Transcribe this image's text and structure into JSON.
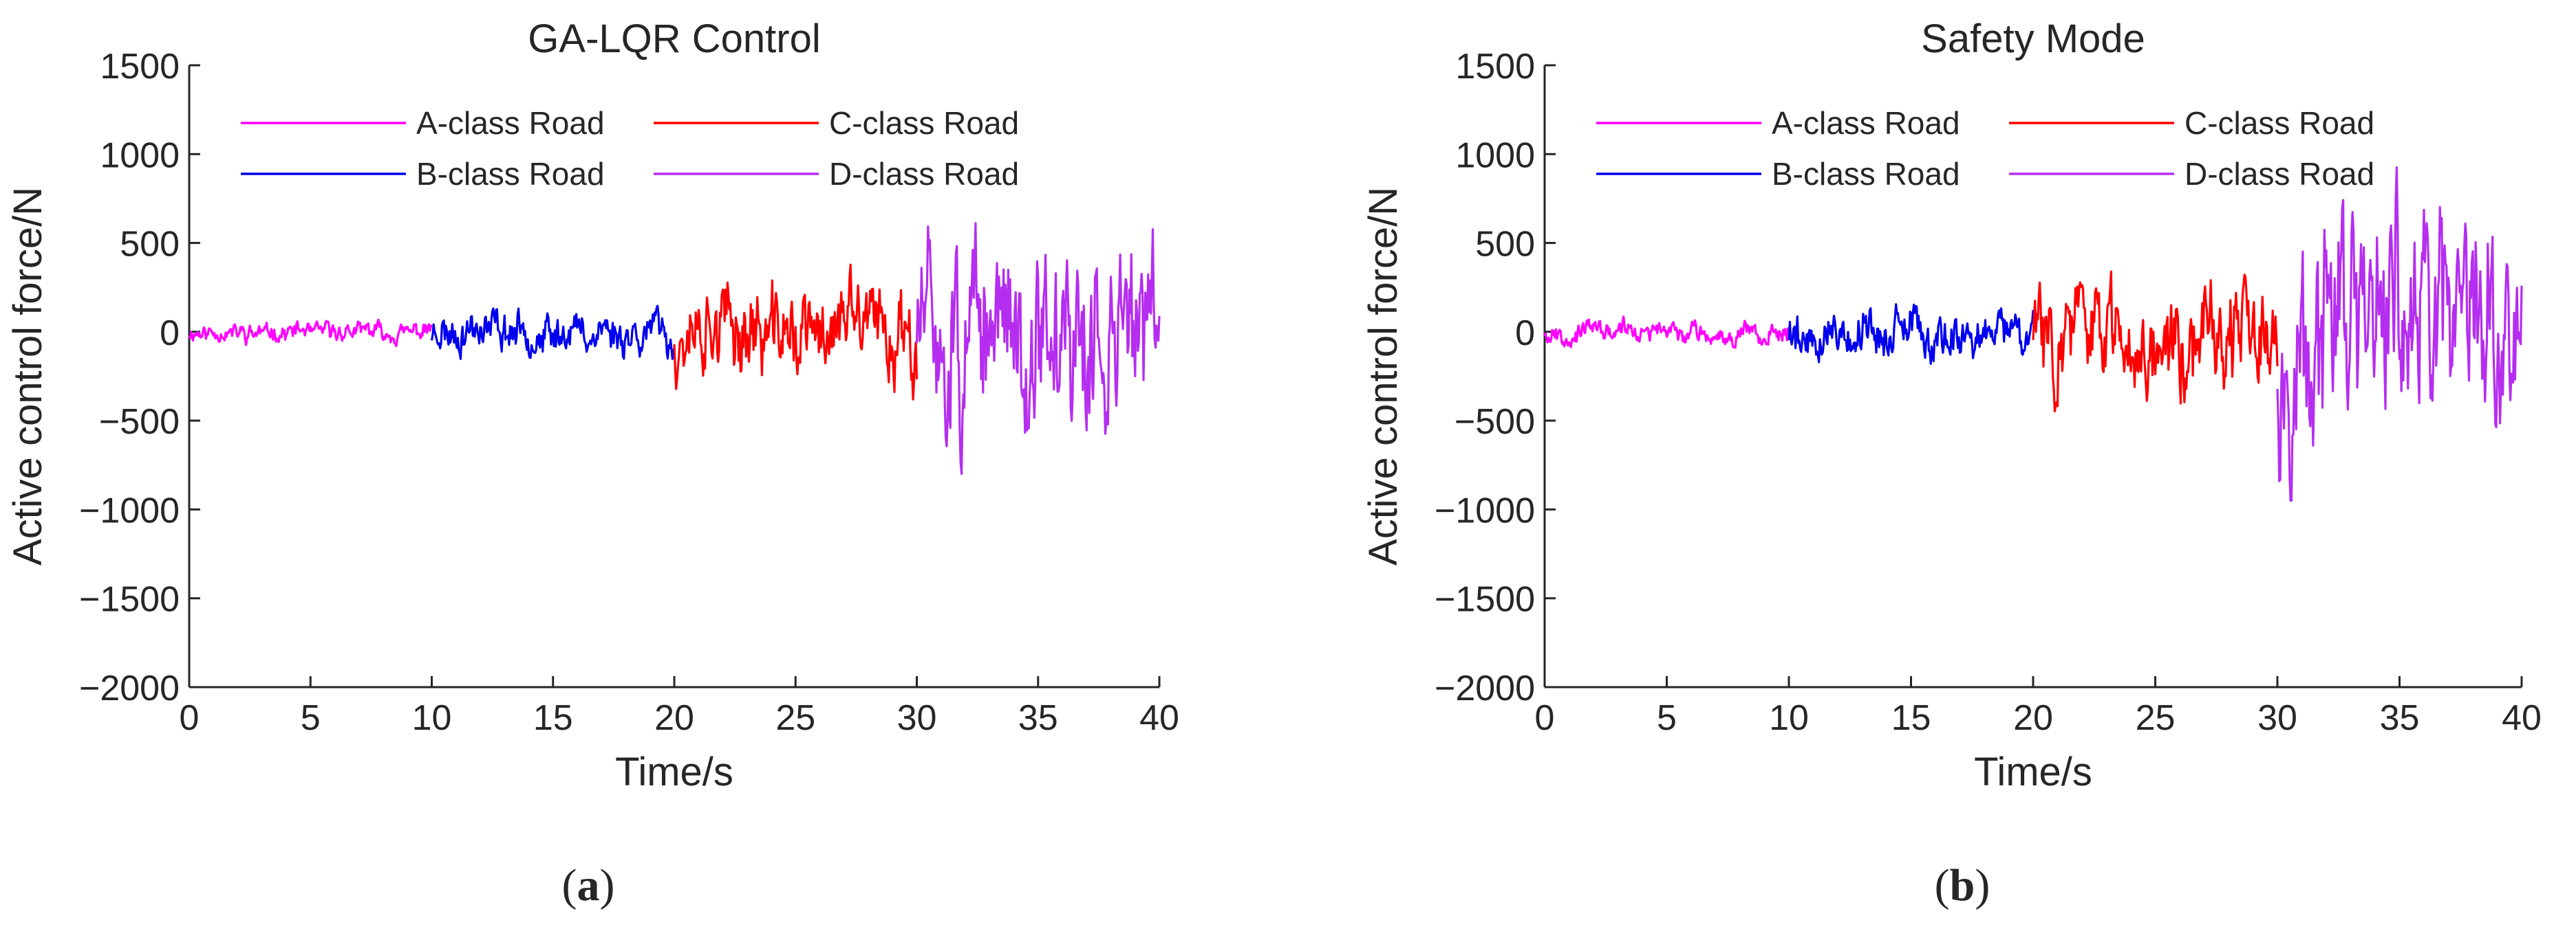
{
  "colors": {
    "a_road": "#ff00ff",
    "b_road": "#0000ee",
    "c_road": "#ff0000",
    "d_road": "#b52ef0",
    "axis": "#262626"
  },
  "chart_data": [
    {
      "type": "line",
      "panel_label": "a",
      "title": "GA-LQR Control",
      "xlabel": "Time/s",
      "ylabel": "Active control force/N",
      "xlim": [
        0,
        40
      ],
      "ylim": [
        -2000,
        1500
      ],
      "xticks": [
        0,
        5,
        10,
        15,
        20,
        25,
        30,
        35,
        40
      ],
      "yticks": [
        -2000,
        -1500,
        -1000,
        -500,
        0,
        500,
        1000,
        1500
      ],
      "legend_position": "top, 2 columns",
      "grid": false,
      "series": [
        {
          "name": "A-class Road",
          "t_start": 0,
          "t_end": 10,
          "amplitude": 80,
          "seed": 11,
          "color": "#ff00ff"
        },
        {
          "name": "B-class Road",
          "t_start": 10,
          "t_end": 20,
          "amplitude": 180,
          "seed": 23,
          "color": "#0000ee"
        },
        {
          "name": "C-class Road",
          "t_start": 20,
          "t_end": 30,
          "amplitude": 400,
          "seed": 37,
          "color": "#ff0000"
        },
        {
          "name": "D-class Road",
          "t_start": 30,
          "t_end": 40,
          "amplitude": 800,
          "seed": 51,
          "color": "#b52ef0"
        }
      ]
    },
    {
      "type": "line",
      "panel_label": "b",
      "title": "Safety Mode",
      "xlabel": "Time/s",
      "ylabel": "Active control force/N",
      "xlim": [
        0,
        40
      ],
      "ylim": [
        -2000,
        1500
      ],
      "xticks": [
        0,
        5,
        10,
        15,
        20,
        25,
        30,
        35,
        40
      ],
      "yticks": [
        -2000,
        -1500,
        -1000,
        -500,
        0,
        500,
        1000,
        1500
      ],
      "legend_position": "top, 2 columns",
      "grid": false,
      "series": [
        {
          "name": "A-class Road",
          "t_start": 0,
          "t_end": 10,
          "amplitude": 90,
          "seed": 67,
          "color": "#ff00ff"
        },
        {
          "name": "B-class Road",
          "t_start": 10,
          "t_end": 20,
          "amplitude": 210,
          "seed": 79,
          "color": "#0000ee"
        },
        {
          "name": "C-class Road",
          "t_start": 20,
          "t_end": 30,
          "amplitude": 450,
          "seed": 83,
          "color": "#ff0000"
        },
        {
          "name": "D-class Road",
          "t_start": 30,
          "t_end": 40,
          "amplitude": 950,
          "seed": 97,
          "color": "#b52ef0"
        }
      ]
    }
  ]
}
